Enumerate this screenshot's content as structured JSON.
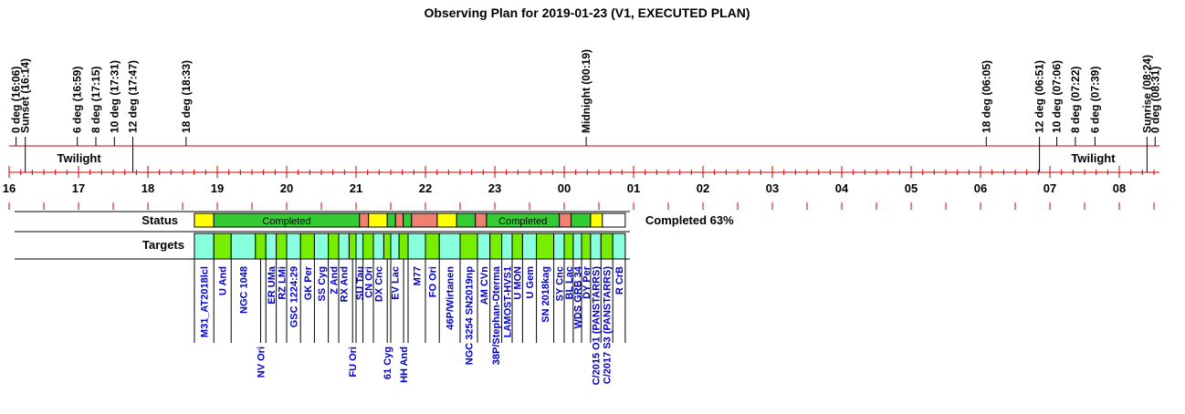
{
  "chart_data": {
    "type": "timeline",
    "title": "Observing Plan for 2019-01-23 (V1, EXECUTED PLAN)",
    "x_unit": "hours (local, 16 = 16:00, 32 = 08:00 next day)",
    "xlim": [
      16.0,
      32.58
    ],
    "hour_ticks": [
      {
        "x": 16,
        "label": "16"
      },
      {
        "x": 17,
        "label": "17"
      },
      {
        "x": 18,
        "label": "18"
      },
      {
        "x": 19,
        "label": "19"
      },
      {
        "x": 20,
        "label": "20"
      },
      {
        "x": 21,
        "label": "21"
      },
      {
        "x": 22,
        "label": "22"
      },
      {
        "x": 23,
        "label": "23"
      },
      {
        "x": 24,
        "label": "00"
      },
      {
        "x": 25,
        "label": "01"
      },
      {
        "x": 26,
        "label": "02"
      },
      {
        "x": 27,
        "label": "03"
      },
      {
        "x": 28,
        "label": "04"
      },
      {
        "x": 29,
        "label": "05"
      },
      {
        "x": 30,
        "label": "06"
      },
      {
        "x": 31,
        "label": "07"
      },
      {
        "x": 32,
        "label": "08"
      }
    ],
    "events": [
      {
        "x": 16.1,
        "label": "0 deg (16:06)"
      },
      {
        "x": 16.233,
        "label": "Sunset (16:14)"
      },
      {
        "x": 16.983,
        "label": "6 deg (16:59)"
      },
      {
        "x": 17.25,
        "label": "8 deg (17:15)"
      },
      {
        "x": 17.517,
        "label": "10 deg (17:31)"
      },
      {
        "x": 17.783,
        "label": "12 deg (17:47)"
      },
      {
        "x": 18.55,
        "label": "18 deg (18:33)"
      },
      {
        "x": 24.317,
        "label": "Midnight (00:19)"
      },
      {
        "x": 30.083,
        "label": "18 deg (06:05)"
      },
      {
        "x": 30.85,
        "label": "12 deg (06:51)"
      },
      {
        "x": 31.1,
        "label": "10 deg (07:06)"
      },
      {
        "x": 31.367,
        "label": "8 deg (07:22)"
      },
      {
        "x": 31.65,
        "label": "6 deg (07:39)"
      },
      {
        "x": 32.4,
        "label": "Sunrise (08:24)"
      },
      {
        "x": 32.517,
        "label": "0 deg (08:31)"
      }
    ],
    "twilight": [
      {
        "start": 16.233,
        "end": 17.783,
        "label": "Twilight"
      },
      {
        "start": 30.85,
        "end": 32.4,
        "label": "Twilight"
      }
    ],
    "status_label": "Status",
    "targets_label": "Targets",
    "completion_text": "Completed 63%",
    "status_segments": [
      {
        "start": 18.67,
        "end": 18.95,
        "color": "#ffff00",
        "label": ""
      },
      {
        "start": 18.95,
        "end": 21.05,
        "color": "#33cc33",
        "label": "Completed"
      },
      {
        "start": 21.05,
        "end": 21.18,
        "color": "#f08070",
        "label": ""
      },
      {
        "start": 21.18,
        "end": 21.45,
        "color": "#ffff00",
        "label": ""
      },
      {
        "start": 21.45,
        "end": 21.57,
        "color": "#33cc33",
        "label": ""
      },
      {
        "start": 21.57,
        "end": 21.68,
        "color": "#f08070",
        "label": ""
      },
      {
        "start": 21.68,
        "end": 21.8,
        "color": "#33cc33",
        "label": ""
      },
      {
        "start": 21.8,
        "end": 22.17,
        "color": "#f08070",
        "label": ""
      },
      {
        "start": 22.17,
        "end": 22.45,
        "color": "#ffff00",
        "label": ""
      },
      {
        "start": 22.45,
        "end": 22.72,
        "color": "#33cc33",
        "label": ""
      },
      {
        "start": 22.72,
        "end": 22.88,
        "color": "#f08070",
        "label": ""
      },
      {
        "start": 22.88,
        "end": 23.93,
        "color": "#33cc33",
        "label": "Completed"
      },
      {
        "start": 23.93,
        "end": 24.1,
        "color": "#f08070",
        "label": ""
      },
      {
        "start": 24.1,
        "end": 24.38,
        "color": "#33cc33",
        "label": ""
      },
      {
        "start": 24.38,
        "end": 24.55,
        "color": "#ffff00",
        "label": ""
      },
      {
        "start": 24.55,
        "end": 24.88,
        "color": "#ffffff",
        "label": ""
      }
    ],
    "target_colors": {
      "green": "#77ee00",
      "cyan": "#88ffdd"
    },
    "targets": [
      {
        "start": 18.67,
        "end": 18.95,
        "color": "cyan",
        "name": "M31_AT2018lcl",
        "level": 0
      },
      {
        "start": 18.95,
        "end": 19.2,
        "color": "green",
        "name": "U And",
        "level": 0
      },
      {
        "start": 19.2,
        "end": 19.55,
        "color": "cyan",
        "name": "NGC 1048",
        "level": 0
      },
      {
        "start": 19.55,
        "end": 19.7,
        "color": "green",
        "name": "NV Ori",
        "level": 1
      },
      {
        "start": 19.7,
        "end": 19.85,
        "color": "cyan",
        "name": "ER UMa",
        "level": 0
      },
      {
        "start": 19.85,
        "end": 20.0,
        "color": "green",
        "name": "RZ LMi",
        "level": 0
      },
      {
        "start": 20.0,
        "end": 20.2,
        "color": "cyan",
        "name": "GSC 1224:29",
        "level": 0
      },
      {
        "start": 20.2,
        "end": 20.4,
        "color": "green",
        "name": "GK Per",
        "level": 0
      },
      {
        "start": 20.4,
        "end": 20.6,
        "color": "cyan",
        "name": "SS Cyg",
        "level": 0
      },
      {
        "start": 20.6,
        "end": 20.75,
        "color": "green",
        "name": "Z And",
        "level": 0
      },
      {
        "start": 20.75,
        "end": 20.9,
        "color": "cyan",
        "name": "RX And",
        "level": 0
      },
      {
        "start": 20.9,
        "end": 21.0,
        "color": "green",
        "name": "FU Ori",
        "level": 1
      },
      {
        "start": 21.0,
        "end": 21.1,
        "color": "cyan",
        "name": "SU Tau",
        "level": 0
      },
      {
        "start": 21.1,
        "end": 21.25,
        "color": "green",
        "name": "CN Ori",
        "level": 0
      },
      {
        "start": 21.25,
        "end": 21.4,
        "color": "cyan",
        "name": "DX Cnc",
        "level": 0
      },
      {
        "start": 21.4,
        "end": 21.5,
        "color": "green",
        "name": "61 Cyg",
        "level": 1
      },
      {
        "start": 21.5,
        "end": 21.62,
        "color": "cyan",
        "name": "EV Lac",
        "level": 0
      },
      {
        "start": 21.62,
        "end": 21.75,
        "color": "green",
        "name": "HH And",
        "level": 1
      },
      {
        "start": 21.75,
        "end": 22.0,
        "color": "cyan",
        "name": "M77",
        "level": 0
      },
      {
        "start": 22.0,
        "end": 22.2,
        "color": "green",
        "name": "FO Ori",
        "level": 0
      },
      {
        "start": 22.2,
        "end": 22.5,
        "color": "cyan",
        "name": "46P/Wirtanen",
        "level": 0
      },
      {
        "start": 22.5,
        "end": 22.75,
        "color": "green",
        "name": "NGC 3254 SN2019np",
        "level": 0
      },
      {
        "start": 22.75,
        "end": 22.93,
        "color": "cyan",
        "name": "AM CVn",
        "level": 0
      },
      {
        "start": 22.93,
        "end": 23.1,
        "color": "green",
        "name": "38P/Stephan-Oterma",
        "level": 0
      },
      {
        "start": 23.1,
        "end": 23.25,
        "color": "cyan",
        "name": "LAMOST-HVS1",
        "level": 0
      },
      {
        "start": 23.25,
        "end": 23.4,
        "color": "green",
        "name": "U MON",
        "level": 0
      },
      {
        "start": 23.4,
        "end": 23.6,
        "color": "cyan",
        "name": "U Gem",
        "level": 0
      },
      {
        "start": 23.6,
        "end": 23.85,
        "color": "green",
        "name": "SN 2018kag",
        "level": 0
      },
      {
        "start": 23.85,
        "end": 24.0,
        "color": "cyan",
        "name": "SY Cnc",
        "level": 0
      },
      {
        "start": 24.0,
        "end": 24.13,
        "color": "green",
        "name": "BL Lac",
        "level": 0
      },
      {
        "start": 24.13,
        "end": 24.25,
        "color": "cyan",
        "name": "WDS GRB 34",
        "level": 0
      },
      {
        "start": 24.25,
        "end": 24.38,
        "color": "green",
        "name": "DY Per",
        "level": 0
      },
      {
        "start": 24.38,
        "end": 24.53,
        "color": "cyan",
        "name": "C/2015 O1 (PANSTARRS)",
        "level": 0
      },
      {
        "start": 24.53,
        "end": 24.7,
        "color": "green",
        "name": "C/2017 S3 (PANSTARRS)",
        "level": 0
      },
      {
        "start": 24.7,
        "end": 24.88,
        "color": "cyan",
        "name": "R CrB",
        "level": 0
      }
    ]
  }
}
